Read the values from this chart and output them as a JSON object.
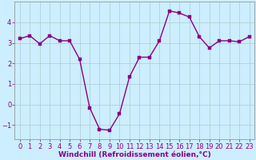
{
  "x": [
    0,
    1,
    2,
    3,
    4,
    5,
    6,
    7,
    8,
    9,
    10,
    11,
    12,
    13,
    14,
    15,
    16,
    17,
    18,
    19,
    20,
    21,
    22,
    23
  ],
  "y": [
    3.2,
    3.35,
    2.95,
    3.35,
    3.1,
    3.1,
    2.2,
    -0.15,
    -1.2,
    -1.25,
    -0.45,
    1.35,
    2.3,
    2.3,
    3.1,
    4.55,
    4.45,
    4.25,
    3.3,
    2.75,
    3.1,
    3.1,
    3.05,
    3.3
  ],
  "line_color": "#880088",
  "marker_color": "#880088",
  "bg_color": "#cceeff",
  "grid_color": "#aacccc",
  "xlabel": "Windchill (Refroidissement éolien,°C)",
  "xlim": [
    -0.5,
    23.5
  ],
  "ylim": [
    -1.7,
    5.0
  ],
  "yticks": [
    -1,
    0,
    1,
    2,
    3,
    4
  ],
  "xticks": [
    0,
    1,
    2,
    3,
    4,
    5,
    6,
    7,
    8,
    9,
    10,
    11,
    12,
    13,
    14,
    15,
    16,
    17,
    18,
    19,
    20,
    21,
    22,
    23
  ],
  "xlabel_fontsize": 6.5,
  "tick_fontsize": 6,
  "line_width": 1.0,
  "marker_size": 2.5
}
